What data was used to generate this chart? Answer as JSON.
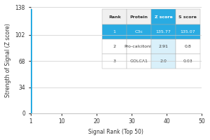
{
  "title": "",
  "xlabel": "Signal Rank (Top 50)",
  "ylabel": "Strength of Signal (Z score)",
  "xlim": [
    1,
    50
  ],
  "ylim": [
    0,
    138
  ],
  "yticks": [
    0,
    34,
    68,
    102,
    138
  ],
  "xticks": [
    1,
    10,
    20,
    30,
    40,
    50
  ],
  "bar_x": [
    1
  ],
  "bar_height": [
    135.77
  ],
  "bar_color": "#29ABE2",
  "bar_width": 0.8,
  "grid_color": "#cccccc",
  "table": {
    "col_labels": [
      "Rank",
      "Protein",
      "Z score",
      "S score"
    ],
    "rows": [
      [
        "1",
        "C3c",
        "135.77",
        "135.07"
      ],
      [
        "2",
        "Pro-calcitonin",
        "2.91",
        "0.8"
      ],
      [
        "3",
        "GOLCA1",
        "2.0",
        "0.03"
      ]
    ],
    "highlight_row": 0,
    "highlight_color": "#29ABE2",
    "highlight_text_color": "#ffffff",
    "header_color": "#f0f0f0",
    "normal_text_color": "#333333",
    "zscore_col_color": "#29ABE2",
    "zscore_col_idx": 2
  },
  "bg_color": "#ffffff",
  "font_size": 5.5,
  "axis_font_size": 5.5
}
